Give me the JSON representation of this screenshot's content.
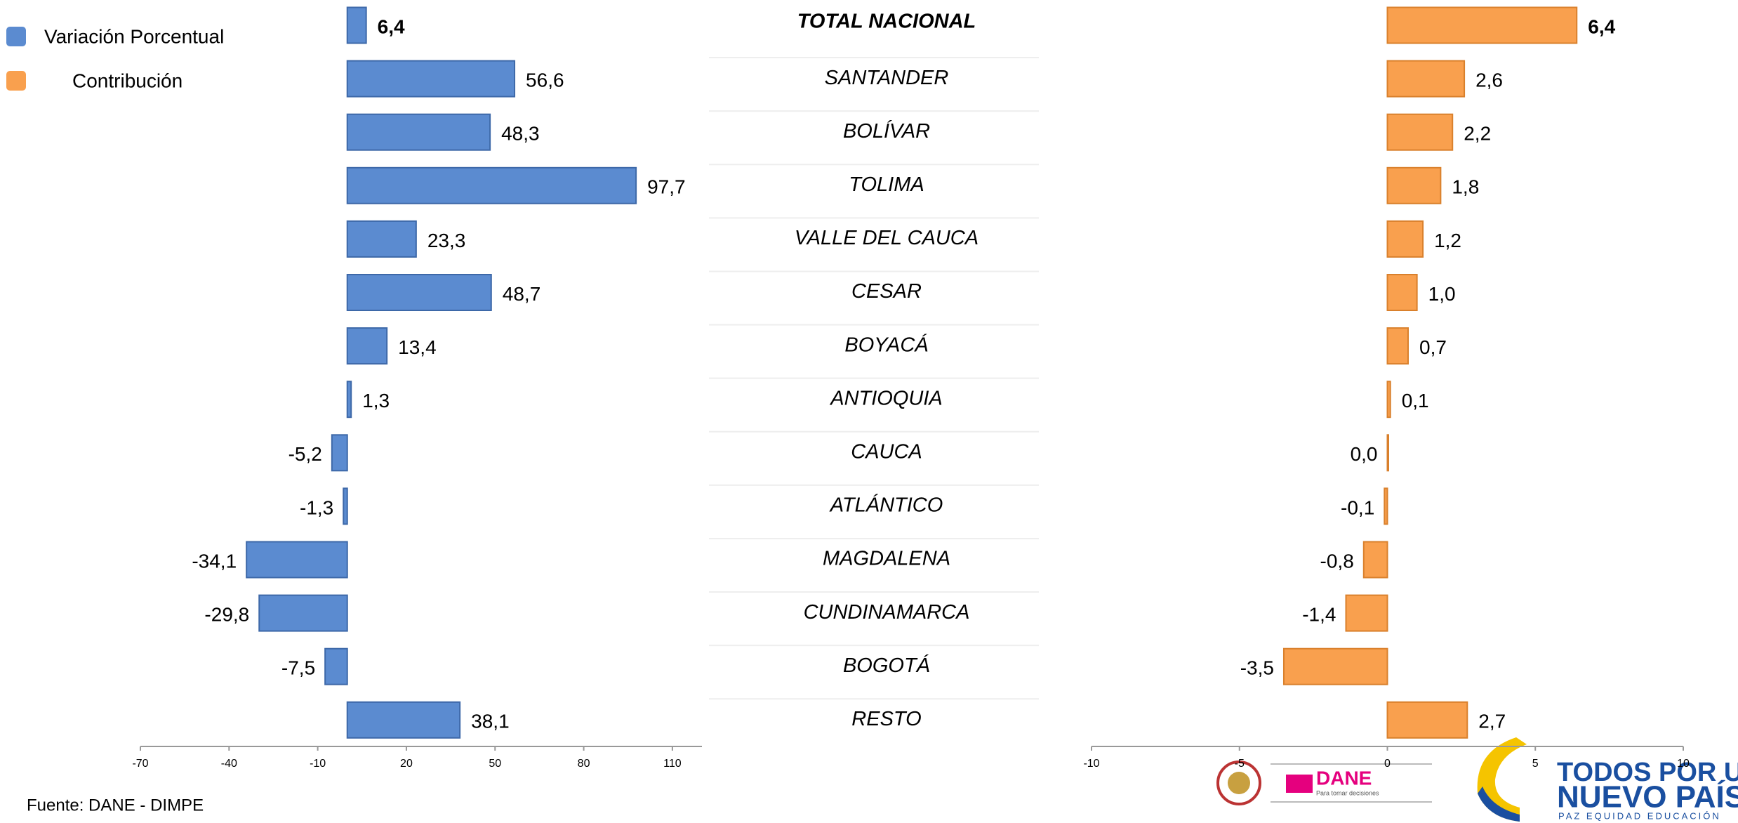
{
  "chart_data": {
    "type": "bar",
    "orientation": "horizontal",
    "categories": [
      "TOTAL NACIONAL",
      "SANTANDER",
      "BOLÍVAR",
      "TOLIMA",
      "VALLE DEL CAUCA",
      "CESAR",
      "BOYACÁ",
      "ANTIOQUIA",
      "CAUCA",
      "ATLÁNTICO",
      "MAGDALENA",
      "CUNDINAMARCA",
      "BOGOTÁ",
      "RESTO"
    ],
    "series": [
      {
        "name": "Variación Porcentual",
        "color": "#5b8bd0",
        "values": [
          6.4,
          56.6,
          48.3,
          97.7,
          23.3,
          48.7,
          13.4,
          1.3,
          -5.2,
          -1.3,
          -34.1,
          -29.8,
          -7.5,
          38.1
        ],
        "value_labels": [
          "6,4",
          "56,6",
          "48,3",
          "97,7",
          "23,3",
          "48,7",
          "13,4",
          "1,3",
          "-5,2",
          "-1,3",
          "-34,1",
          "-29,8",
          "-7,5",
          "38,1"
        ]
      },
      {
        "name": "Contribución",
        "color": "#f9a04e",
        "axis": "x2",
        "values": [
          6.4,
          2.6,
          2.2,
          1.8,
          1.2,
          1.0,
          0.7,
          0.1,
          0.0,
          -0.1,
          -0.8,
          -1.4,
          -3.5,
          2.7
        ],
        "value_labels": [
          "6,4",
          "2,6",
          "2,2",
          "1,8",
          "1,2",
          "1,0",
          "0,7",
          "0,1",
          "0,0",
          "-0,1",
          "-0,8",
          "-1,4",
          "-3,5",
          "2,7"
        ]
      }
    ],
    "xlim": [
      -70,
      120
    ],
    "xticks": [
      -70,
      -40,
      -10,
      20,
      50,
      80,
      110
    ],
    "x2lim": [
      -10,
      10
    ],
    "x2ticks": [
      -10,
      -5,
      0,
      5,
      10
    ],
    "legend": "top-left"
  },
  "source": "Fuente: DANE - DIMPE",
  "logos": {
    "dane": "DANE",
    "dane_tagline": "Para tomar decisiones",
    "slogan_top": "TODOS POR UN",
    "slogan_main": "NUEVO PAÍS",
    "slogan_sub": "PAZ  EQUIDAD  EDUCACIÓN"
  }
}
